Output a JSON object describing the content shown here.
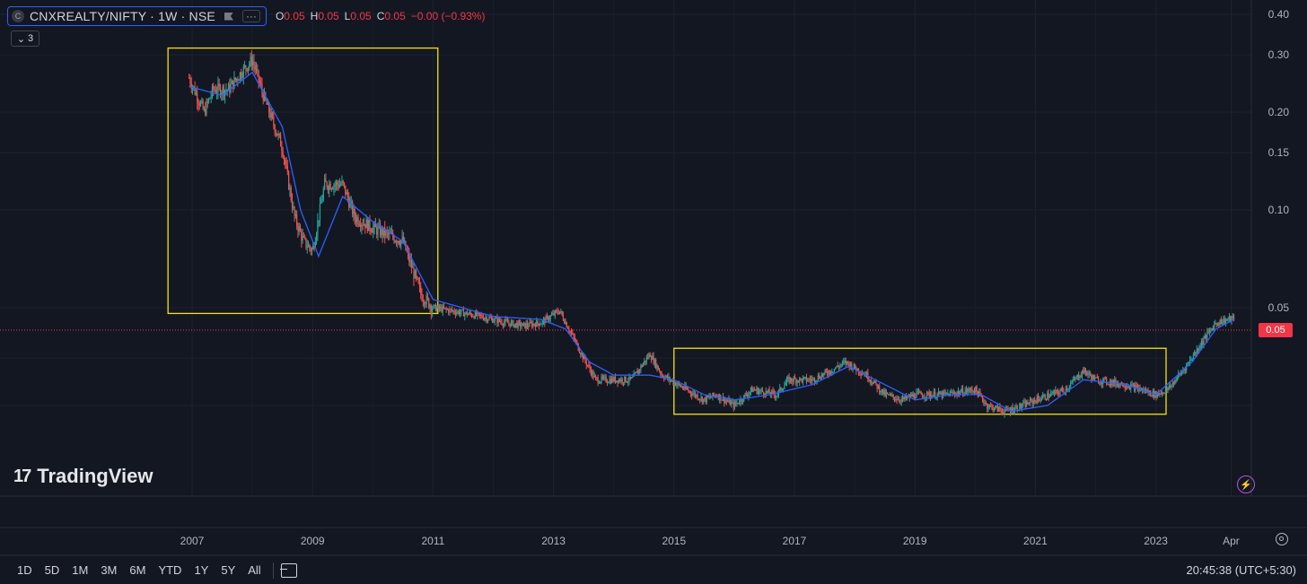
{
  "header": {
    "symbol_logo": "C",
    "symbol": "CNXREALTY/NIFTY · 1W · NSE",
    "ohlc": [
      {
        "k": "O",
        "v": "0.05"
      },
      {
        "k": "H",
        "v": "0.05"
      },
      {
        "k": "L",
        "v": "0.05"
      },
      {
        "k": "C",
        "v": "0.05"
      }
    ],
    "change": "−0.00 (−0.93%)",
    "collapse_count": "3"
  },
  "price_badge": "0.05",
  "branding": {
    "name": "TradingView"
  },
  "bottom_bar": {
    "ranges": [
      "1D",
      "5D",
      "1M",
      "3M",
      "6M",
      "YTD",
      "1Y",
      "5Y",
      "All"
    ],
    "clock": "20:45:38 (UTC+5:30)"
  },
  "colors": {
    "background": "#131722",
    "up": "#26a69a",
    "down": "#ef5350",
    "ma_line": "#2962ff",
    "highlight_box": "#f5e400",
    "last_price": "#f23645"
  },
  "chart_data": {
    "type": "candlestick",
    "scale": "log",
    "y_ticks": [
      0.4,
      0.3,
      0.2,
      0.15,
      0.1,
      0.05
    ],
    "y_tick_labels": [
      "0.40",
      "0.30",
      "0.20",
      "0.15",
      "0.10",
      "0.05"
    ],
    "x_ticks": [
      2007,
      2009,
      2011,
      2013,
      2015,
      2017,
      2019,
      2021,
      2023,
      2024.25
    ],
    "x_tick_labels": [
      "2007",
      "2009",
      "2011",
      "2013",
      "2015",
      "2017",
      "2019",
      "2021",
      "2023",
      "Apr"
    ],
    "last_price": 0.0465,
    "series": [
      {
        "name": "price",
        "x": [
          2006.95,
          2007.2,
          2007.35,
          2007.6,
          2007.85,
          2008.0,
          2008.2,
          2008.5,
          2008.7,
          2008.85,
          2009.0,
          2009.2,
          2009.5,
          2009.7,
          2010.0,
          2010.5,
          2010.8,
          2011.0,
          2011.3,
          2011.8,
          2012.2,
          2012.5,
          2012.8,
          2013.1,
          2013.5,
          2013.7,
          2014.0,
          2014.3,
          2014.6,
          2014.8,
          2015.2,
          2015.5,
          2015.7,
          2016.0,
          2016.3,
          2016.7,
          2016.9,
          2017.3,
          2017.6,
          2017.85,
          2018.2,
          2018.5,
          2018.8,
          2019.0,
          2019.5,
          2020.0,
          2020.2,
          2020.5,
          2020.8,
          2021.0,
          2021.5,
          2021.8,
          2022.0,
          2022.5,
          2023.0,
          2023.2,
          2023.5,
          2023.8,
          2024.0,
          2024.3
        ],
        "values": [
          0.255,
          0.2,
          0.235,
          0.235,
          0.27,
          0.29,
          0.22,
          0.155,
          0.095,
          0.08,
          0.075,
          0.12,
          0.12,
          0.095,
          0.088,
          0.08,
          0.055,
          0.05,
          0.049,
          0.047,
          0.045,
          0.044,
          0.045,
          0.049,
          0.035,
          0.03,
          0.03,
          0.03,
          0.036,
          0.031,
          0.028,
          0.026,
          0.027,
          0.025,
          0.028,
          0.027,
          0.03,
          0.03,
          0.032,
          0.034,
          0.031,
          0.027,
          0.026,
          0.027,
          0.027,
          0.028,
          0.025,
          0.024,
          0.025,
          0.026,
          0.028,
          0.032,
          0.03,
          0.029,
          0.027,
          0.028,
          0.033,
          0.04,
          0.045,
          0.0465
        ]
      }
    ],
    "moving_average": {
      "x": [
        2006.95,
        2007.5,
        2008.0,
        2008.5,
        2008.8,
        2009.1,
        2009.5,
        2010.0,
        2010.5,
        2011.0,
        2012.0,
        2012.8,
        2013.2,
        2013.6,
        2014.0,
        2014.6,
        2015.0,
        2015.5,
        2016.0,
        2016.6,
        2017.3,
        2017.9,
        2018.5,
        2019.0,
        2019.6,
        2020.1,
        2020.6,
        2021.2,
        2021.8,
        2022.5,
        2023.0,
        2023.6,
        2024.0,
        2024.3
      ],
      "values": [
        0.24,
        0.225,
        0.265,
        0.18,
        0.1,
        0.072,
        0.11,
        0.092,
        0.08,
        0.053,
        0.047,
        0.046,
        0.043,
        0.034,
        0.031,
        0.031,
        0.03,
        0.027,
        0.026,
        0.027,
        0.029,
        0.033,
        0.029,
        0.026,
        0.027,
        0.027,
        0.024,
        0.025,
        0.03,
        0.029,
        0.027,
        0.034,
        0.043,
        0.046
      ]
    },
    "highlight_boxes": [
      {
        "x": [
          2006.6,
          2011.08
        ],
        "y": [
          0.048,
          0.315
        ]
      },
      {
        "x": [
          2015.0,
          2023.17
        ],
        "y": [
          0.0235,
          0.0375
        ]
      }
    ]
  }
}
